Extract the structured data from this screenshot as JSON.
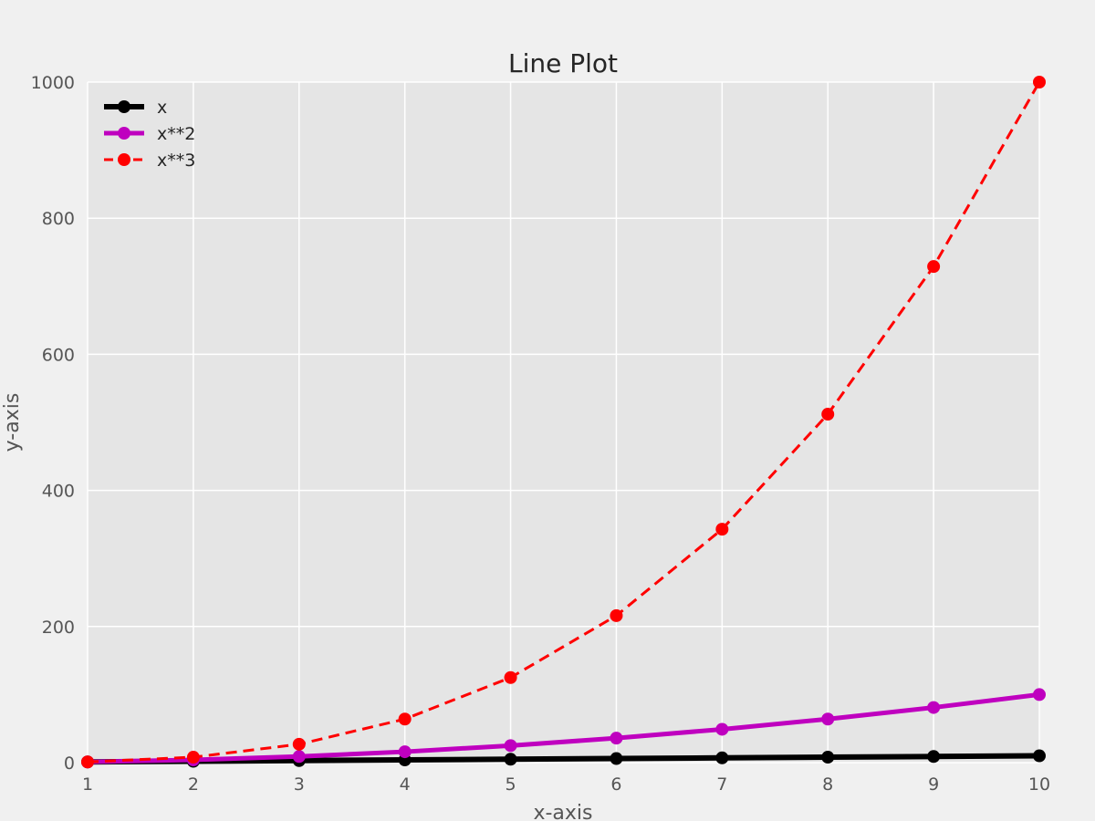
{
  "chart_data": {
    "type": "line",
    "title": "Line Plot",
    "xlabel": "x-axis",
    "ylabel": "y-axis",
    "x": [
      1,
      2,
      3,
      4,
      5,
      6,
      7,
      8,
      9,
      10
    ],
    "xlim": [
      1,
      10
    ],
    "ylim": [
      0,
      1000
    ],
    "xticks": [
      "1",
      "2",
      "3",
      "4",
      "5",
      "6",
      "7",
      "8",
      "9",
      "10"
    ],
    "yticks": [
      "0",
      "200",
      "400",
      "600",
      "800",
      "1000"
    ],
    "grid": true,
    "legend_position": "top-left",
    "background_color": "#e5e5e5",
    "series": [
      {
        "name": "x",
        "color": "#000000",
        "linestyle": "solid",
        "marker": "circle",
        "values": [
          1,
          2,
          3,
          4,
          5,
          6,
          7,
          8,
          9,
          10
        ]
      },
      {
        "name": "x**2",
        "color": "#bf00bf",
        "linestyle": "solid",
        "marker": "circle",
        "values": [
          1,
          4,
          9,
          16,
          25,
          36,
          49,
          64,
          81,
          100
        ]
      },
      {
        "name": "x**3",
        "color": "#ff0000",
        "linestyle": "dashed",
        "marker": "circle",
        "values": [
          1,
          8,
          27,
          64,
          125,
          216,
          343,
          512,
          729,
          1000
        ]
      }
    ]
  }
}
